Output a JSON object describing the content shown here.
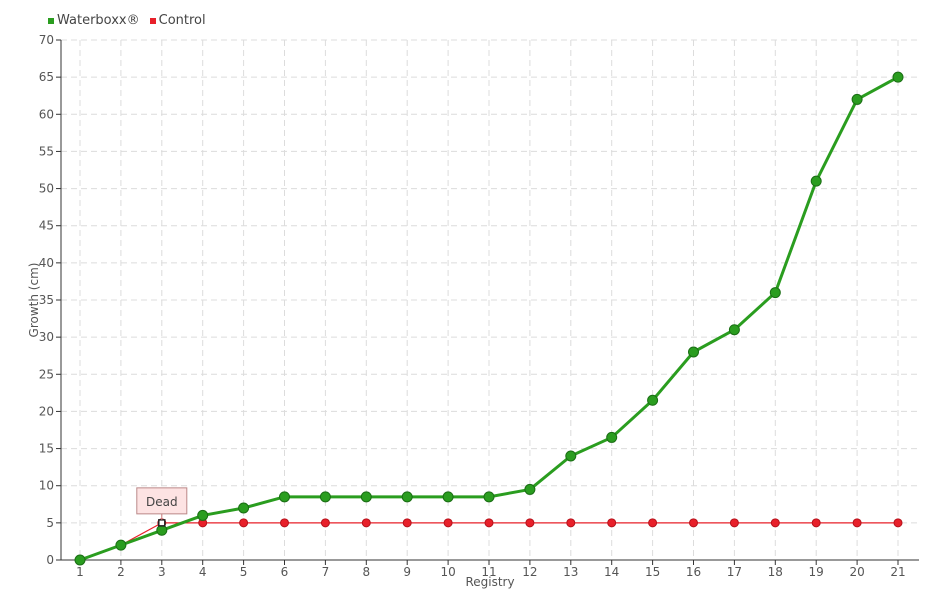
{
  "chart_data": {
    "type": "line",
    "xlabel": "Registry",
    "ylabel": "Growth (cm)",
    "categories": [
      "1",
      "2",
      "3",
      "4",
      "5",
      "6",
      "7",
      "8",
      "9",
      "10",
      "11",
      "12",
      "13",
      "14",
      "15",
      "16",
      "17",
      "18",
      "19",
      "20",
      "21"
    ],
    "ylim": [
      0,
      70
    ],
    "yticks": [
      0,
      5,
      10,
      15,
      20,
      25,
      30,
      35,
      40,
      45,
      50,
      55,
      60,
      65,
      70
    ],
    "grid": true,
    "legend_position": "top-left",
    "series": [
      {
        "name": "Waterboxx®",
        "color": "#2a9d1f",
        "values": [
          0,
          2,
          4,
          6,
          7,
          8.5,
          8.5,
          8.5,
          8.5,
          8.5,
          8.5,
          9.5,
          14,
          16.5,
          21.5,
          28,
          31,
          36,
          51,
          62,
          65
        ]
      },
      {
        "name": "Control",
        "color": "#e8202a",
        "values": [
          0,
          2,
          5,
          5,
          5,
          5,
          5,
          5,
          5,
          5,
          5,
          5,
          5,
          5,
          5,
          5,
          5,
          5,
          5,
          5,
          5
        ]
      }
    ],
    "annotations": [
      {
        "text": "Dead",
        "series": "Control",
        "x": "3",
        "y": 5
      }
    ]
  }
}
